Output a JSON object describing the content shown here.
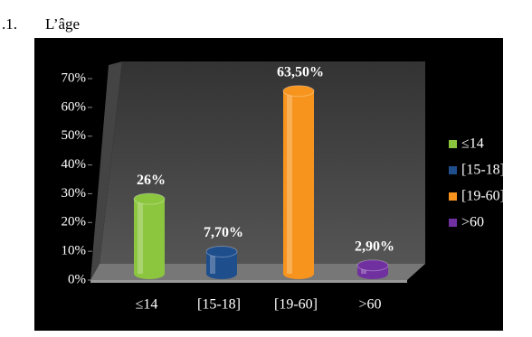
{
  "heading": {
    "number": ".1.",
    "title": "L’âge"
  },
  "chart_data": {
    "type": "bar",
    "categories": [
      "≤14",
      "[15-18]",
      "[19-60]",
      ">60"
    ],
    "values": [
      26,
      7.7,
      63.5,
      2.9
    ],
    "value_labels": [
      "26%",
      "7,70%",
      "63,50%",
      "2,90%"
    ],
    "colors": [
      "#8cc63f",
      "#1f4e8c",
      "#f7941d",
      "#7030a0"
    ],
    "ylim": [
      0,
      70
    ],
    "yticks": [
      {
        "value": 0,
        "label": "0%"
      },
      {
        "value": 10,
        "label": "10%"
      },
      {
        "value": 20,
        "label": "20%"
      },
      {
        "value": 30,
        "label": "30%"
      },
      {
        "value": 40,
        "label": "40%"
      },
      {
        "value": 50,
        "label": "50%"
      },
      {
        "value": 60,
        "label": "60%"
      },
      {
        "value": 70,
        "label": "70%"
      }
    ],
    "legend": "right"
  }
}
